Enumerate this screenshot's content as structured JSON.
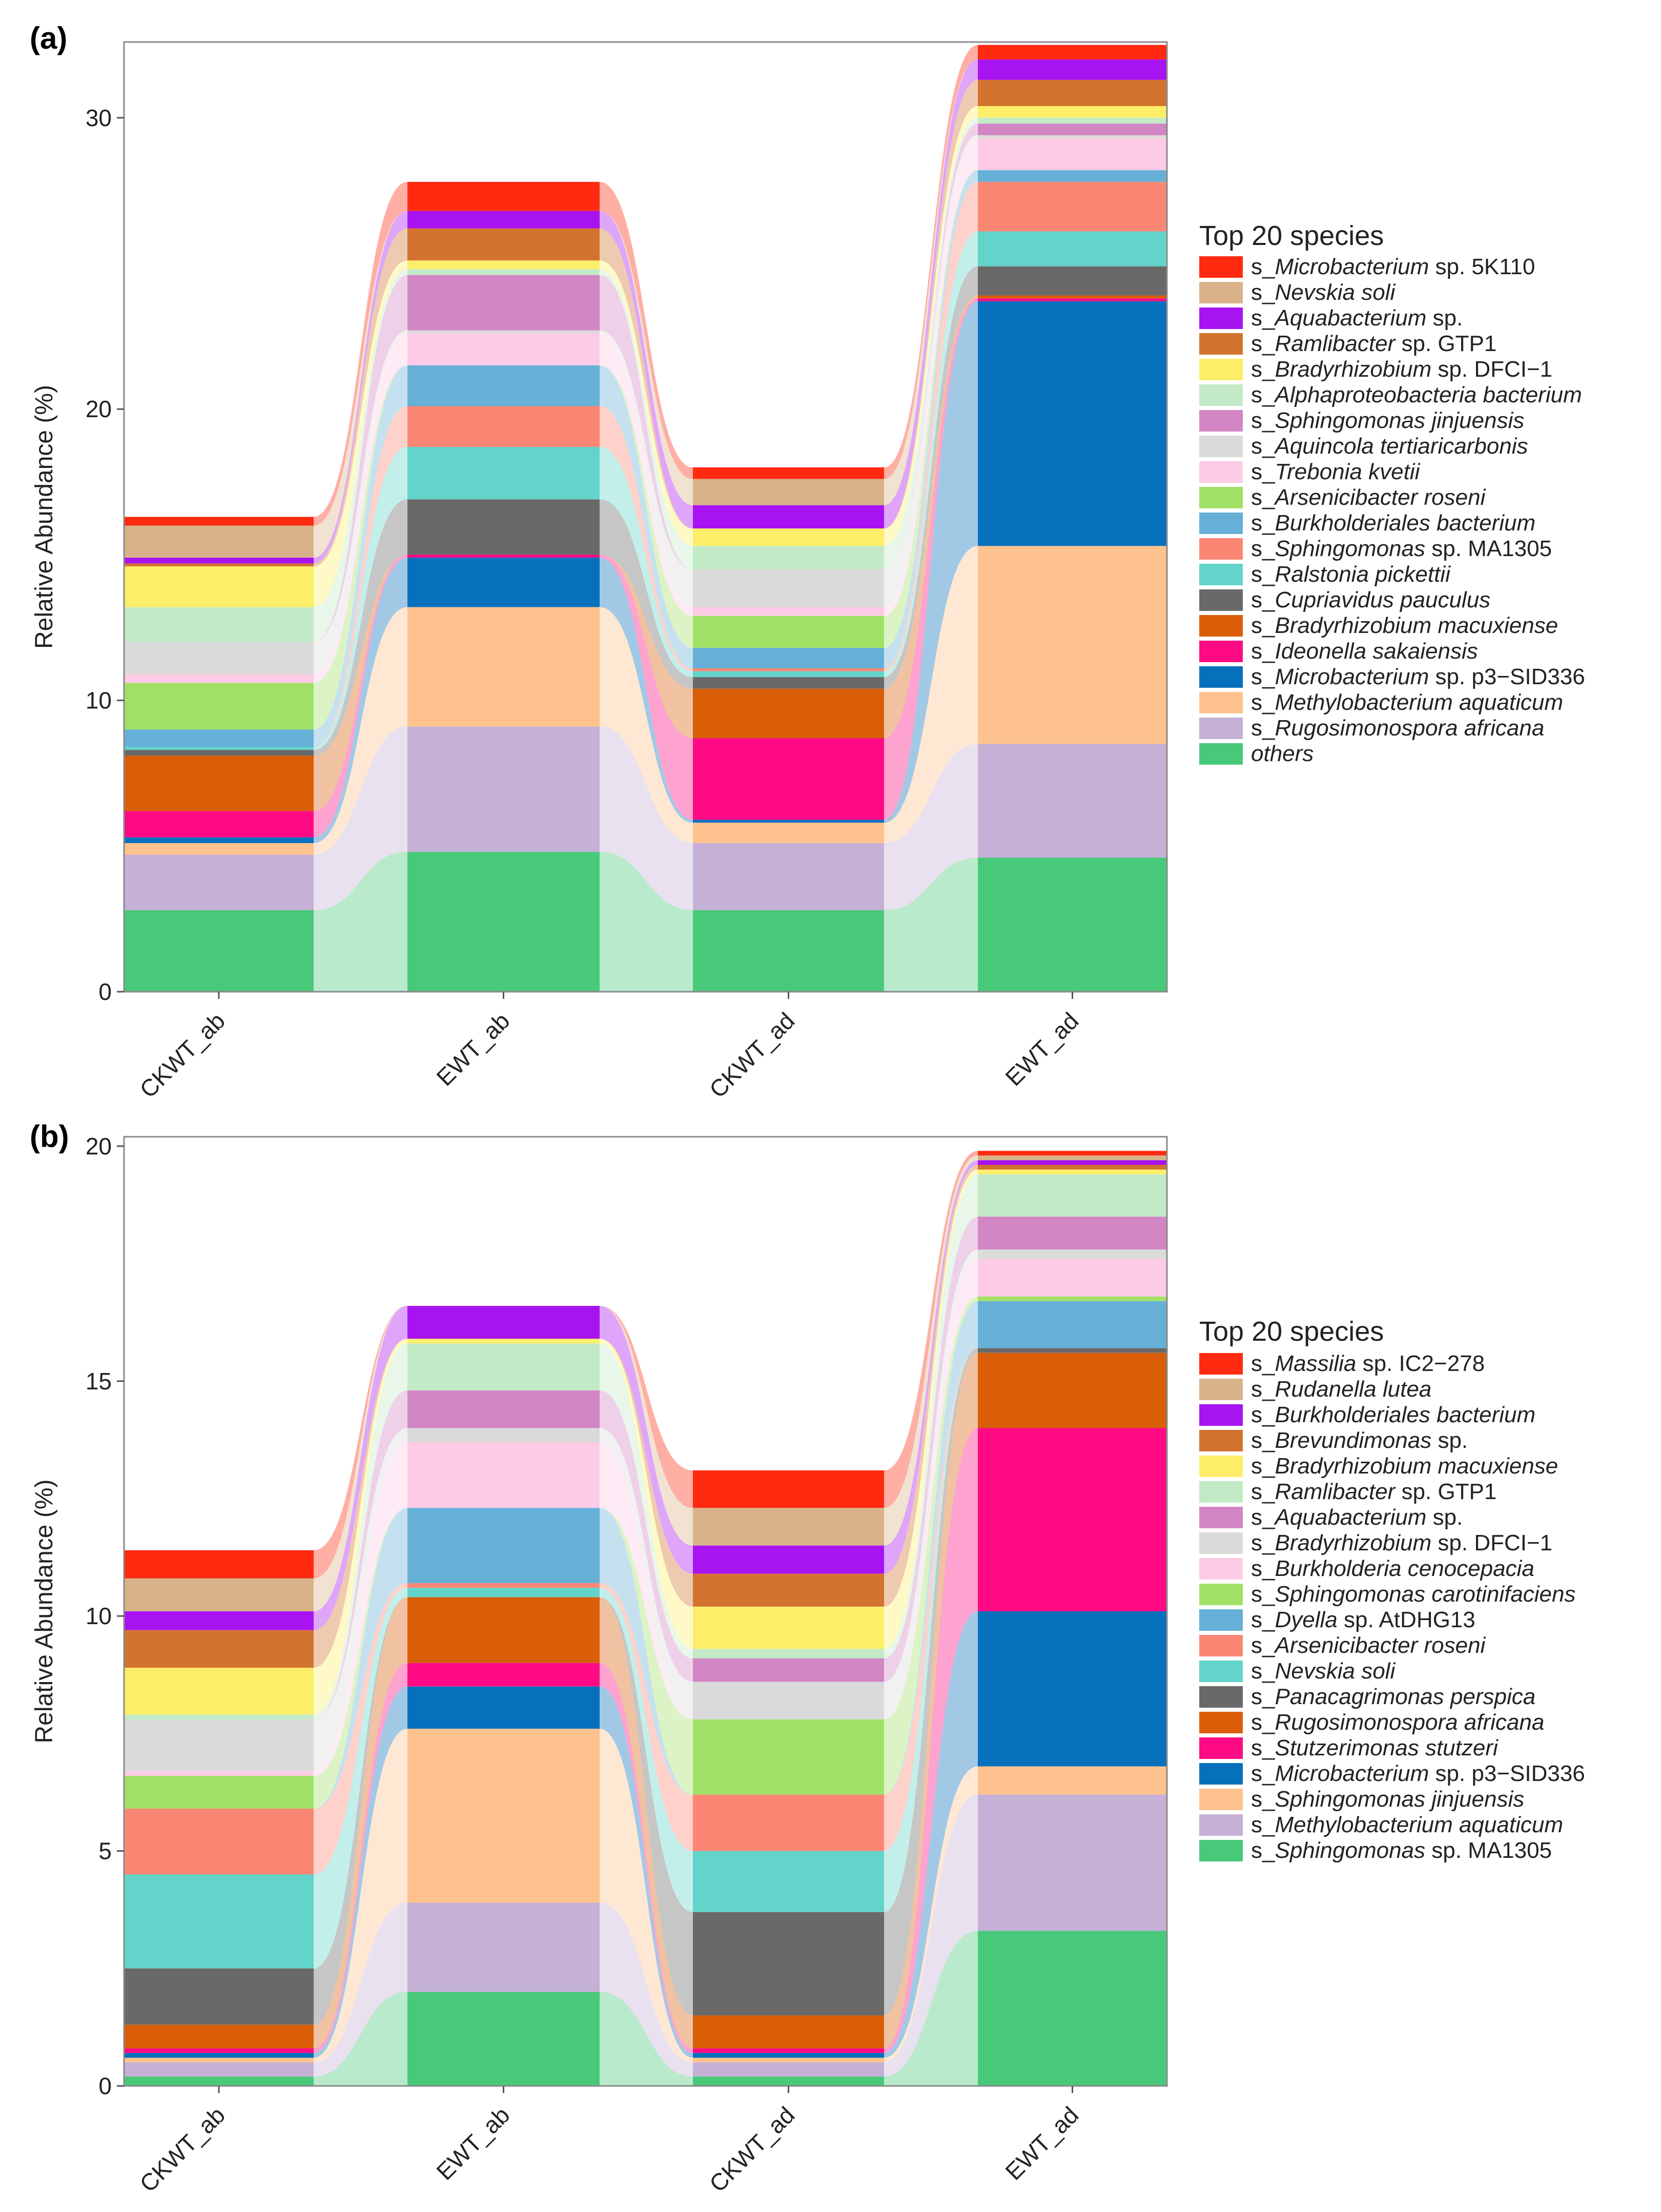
{
  "chart_data": [
    {
      "type": "stacked-bar-alluvial",
      "panel_label": "(a)",
      "ylabel": "Relative Abundance (%)",
      "ylim": [
        0,
        32.6
      ],
      "yticks": [
        0,
        10,
        20,
        30
      ],
      "categories": [
        "CKWT_ab",
        "EWT_ab",
        "CKWT_ad",
        "EWT_ad"
      ],
      "legend_title": "Top 20 species",
      "series": [
        {
          "prefix": "s_",
          "genus": "Microbacterium",
          "rest": " sp. 5K110",
          "color": "#FF2A10",
          "values": [
            0.3,
            1.0,
            0.4,
            0.5
          ]
        },
        {
          "prefix": "s_",
          "genus": "Nevskia soli",
          "rest": "",
          "color": "#D9B28A",
          "values": [
            1.1,
            0.0,
            0.9,
            0.0
          ]
        },
        {
          "prefix": "s_",
          "genus": "Aquabacterium",
          "rest": " sp.",
          "color": "#A813F2",
          "values": [
            0.2,
            0.6,
            0.8,
            0.7
          ]
        },
        {
          "prefix": "s_",
          "genus": "Ramlibacter",
          "rest": " sp. GTP1",
          "color": "#D2732F",
          "values": [
            0.1,
            1.1,
            0.0,
            0.9
          ]
        },
        {
          "prefix": "s_",
          "genus": "Bradyrhizobium",
          "rest": " sp. DFCI−1",
          "color": "#FDEE6A",
          "values": [
            1.4,
            0.3,
            0.6,
            0.4
          ]
        },
        {
          "prefix": "s_",
          "genus": "Alphaproteobacteria bacterium",
          "rest": "",
          "color": "#C3EAC6",
          "values": [
            1.2,
            0.2,
            0.8,
            0.2
          ]
        },
        {
          "prefix": "s_",
          "genus": "Sphingomonas jinjuensis",
          "rest": "",
          "color": "#D286C3",
          "values": [
            0.0,
            1.9,
            0.0,
            0.4
          ]
        },
        {
          "prefix": "s_",
          "genus": "Aquincola tertiaricarbonis",
          "rest": "",
          "color": "#DADADA",
          "values": [
            1.1,
            0.1,
            1.3,
            0.1
          ]
        },
        {
          "prefix": "s_",
          "genus": "Trebonia kvetii",
          "rest": "",
          "color": "#FDCBE6",
          "values": [
            0.3,
            1.1,
            0.3,
            1.1
          ]
        },
        {
          "prefix": "s_",
          "genus": "Arsenicibacter roseni",
          "rest": "",
          "color": "#A2E167",
          "values": [
            1.6,
            0.0,
            1.1,
            0.0
          ]
        },
        {
          "prefix": "s_",
          "genus": "Burkholderiales bacterium",
          "rest": "",
          "color": "#66B0D7",
          "values": [
            0.6,
            1.4,
            0.7,
            0.4
          ]
        },
        {
          "prefix": "s_",
          "genus": "Sphingomonas",
          "rest": " sp. MA1305",
          "color": "#FC8674",
          "values": [
            0.0,
            1.4,
            0.1,
            1.7
          ]
        },
        {
          "prefix": "s_",
          "genus": "Ralstonia pickettii",
          "rest": "",
          "color": "#62D4CA",
          "values": [
            0.1,
            1.8,
            0.2,
            1.2
          ]
        },
        {
          "prefix": "s_",
          "genus": "Cupriavidus pauculus",
          "rest": "",
          "color": "#696969",
          "values": [
            0.2,
            1.9,
            0.4,
            1.0
          ]
        },
        {
          "prefix": "s_",
          "genus": "Bradyrhizobium macuxiense",
          "rest": "",
          "color": "#DA5E08",
          "values": [
            1.9,
            0.0,
            1.7,
            0.1
          ]
        },
        {
          "prefix": "s_",
          "genus": "Ideonella sakaiensis",
          "rest": "",
          "color": "#FD0A84",
          "values": [
            0.9,
            0.1,
            2.8,
            0.1
          ]
        },
        {
          "prefix": "s_",
          "genus": "Microbacterium",
          "rest": " sp. p3−SID336",
          "color": "#0770BC",
          "values": [
            0.2,
            1.7,
            0.1,
            8.4
          ]
        },
        {
          "prefix": "s_",
          "genus": "Methylobacterium aquaticum",
          "rest": "",
          "color": "#FDC28E",
          "values": [
            0.4,
            4.1,
            0.7,
            6.8
          ]
        },
        {
          "prefix": "s_",
          "genus": "Rugosimonospora africana",
          "rest": "",
          "color": "#C5B0D6",
          "values": [
            1.9,
            4.3,
            2.3,
            3.9
          ]
        },
        {
          "prefix": "",
          "genus": "others",
          "rest": "",
          "color": "#48C97A",
          "values": [
            2.8,
            4.8,
            2.8,
            4.6
          ]
        }
      ]
    },
    {
      "type": "stacked-bar-alluvial",
      "panel_label": "(b)",
      "ylabel": "Relative Abundance (%)",
      "ylim": [
        0,
        20.2
      ],
      "yticks": [
        0,
        5,
        10,
        15,
        20
      ],
      "categories": [
        "CKWT_ab",
        "EWT_ab",
        "CKWT_ad",
        "EWT_ad"
      ],
      "legend_title": "Top 20 species",
      "series": [
        {
          "prefix": "s_",
          "genus": "Massilia",
          "rest": " sp. IC2−278",
          "color": "#FF2A10",
          "values": [
            0.6,
            0.0,
            0.8,
            0.1
          ]
        },
        {
          "prefix": "s_",
          "genus": "Rudanella lutea",
          "rest": "",
          "color": "#D9B28A",
          "values": [
            0.7,
            0.0,
            0.8,
            0.1
          ]
        },
        {
          "prefix": "s_",
          "genus": "Burkholderiales bacterium",
          "rest": "",
          "color": "#A813F2",
          "values": [
            0.4,
            0.7,
            0.6,
            0.1
          ]
        },
        {
          "prefix": "s_",
          "genus": "Brevundimonas",
          "rest": " sp.",
          "color": "#D2732F",
          "values": [
            0.8,
            0.0,
            0.7,
            0.1
          ]
        },
        {
          "prefix": "s_",
          "genus": "Bradyrhizobium macuxiense",
          "rest": "",
          "color": "#FDEE6A",
          "values": [
            1.0,
            0.1,
            0.9,
            0.1
          ]
        },
        {
          "prefix": "s_",
          "genus": "Ramlibacter",
          "rest": " sp. GTP1",
          "color": "#C3EAC6",
          "values": [
            0.1,
            1.0,
            0.2,
            0.9
          ]
        },
        {
          "prefix": "s_",
          "genus": "Aquabacterium",
          "rest": " sp.",
          "color": "#D286C3",
          "values": [
            0.0,
            0.8,
            0.5,
            0.7
          ]
        },
        {
          "prefix": "s_",
          "genus": "Bradyrhizobium",
          "rest": " sp. DFCI−1",
          "color": "#DADADA",
          "values": [
            1.1,
            0.3,
            0.8,
            0.2
          ]
        },
        {
          "prefix": "s_",
          "genus": "Burkholderia cenocepacia",
          "rest": "",
          "color": "#FDCBE6",
          "values": [
            0.1,
            1.4,
            0.0,
            0.8
          ]
        },
        {
          "prefix": "s_",
          "genus": "Sphingomonas carotinifaciens",
          "rest": "",
          "color": "#A2E167",
          "values": [
            0.7,
            0.0,
            1.6,
            0.1
          ]
        },
        {
          "prefix": "s_",
          "genus": "Dyella",
          "rest": " sp. AtDHG13",
          "color": "#66B0D7",
          "values": [
            0.0,
            1.6,
            0.0,
            1.0
          ]
        },
        {
          "prefix": "s_",
          "genus": "Arsenicibacter roseni",
          "rest": "",
          "color": "#FC8674",
          "values": [
            1.4,
            0.1,
            1.2,
            0.0
          ]
        },
        {
          "prefix": "s_",
          "genus": "Nevskia soli",
          "rest": "",
          "color": "#62D4CA",
          "values": [
            2.0,
            0.2,
            1.3,
            0.0
          ]
        },
        {
          "prefix": "s_",
          "genus": "Panacagrimonas perspica",
          "rest": "",
          "color": "#696969",
          "values": [
            1.2,
            0.0,
            2.2,
            0.1
          ]
        },
        {
          "prefix": "s_",
          "genus": "Rugosimonospora africana",
          "rest": "",
          "color": "#DA5E08",
          "values": [
            0.5,
            1.4,
            0.7,
            1.6
          ]
        },
        {
          "prefix": "s_",
          "genus": "Stutzerimonas stutzeri",
          "rest": "",
          "color": "#FD0A84",
          "values": [
            0.1,
            0.5,
            0.1,
            3.9
          ]
        },
        {
          "prefix": "s_",
          "genus": "Microbacterium",
          "rest": " sp. p3−SID336",
          "color": "#0770BC",
          "values": [
            0.1,
            0.9,
            0.1,
            3.3
          ]
        },
        {
          "prefix": "s_",
          "genus": "Sphingomonas jinjuensis",
          "rest": "",
          "color": "#FDC28E",
          "values": [
            0.1,
            3.7,
            0.1,
            0.6
          ]
        },
        {
          "prefix": "s_",
          "genus": "Methylobacterium aquaticum",
          "rest": "",
          "color": "#C5B0D6",
          "values": [
            0.3,
            1.9,
            0.3,
            2.9
          ]
        },
        {
          "prefix": "s_",
          "genus": "Sphingomonas",
          "rest": " sp. MA1305",
          "color": "#48C97A",
          "values": [
            0.2,
            2.0,
            0.2,
            3.3
          ]
        }
      ]
    }
  ]
}
